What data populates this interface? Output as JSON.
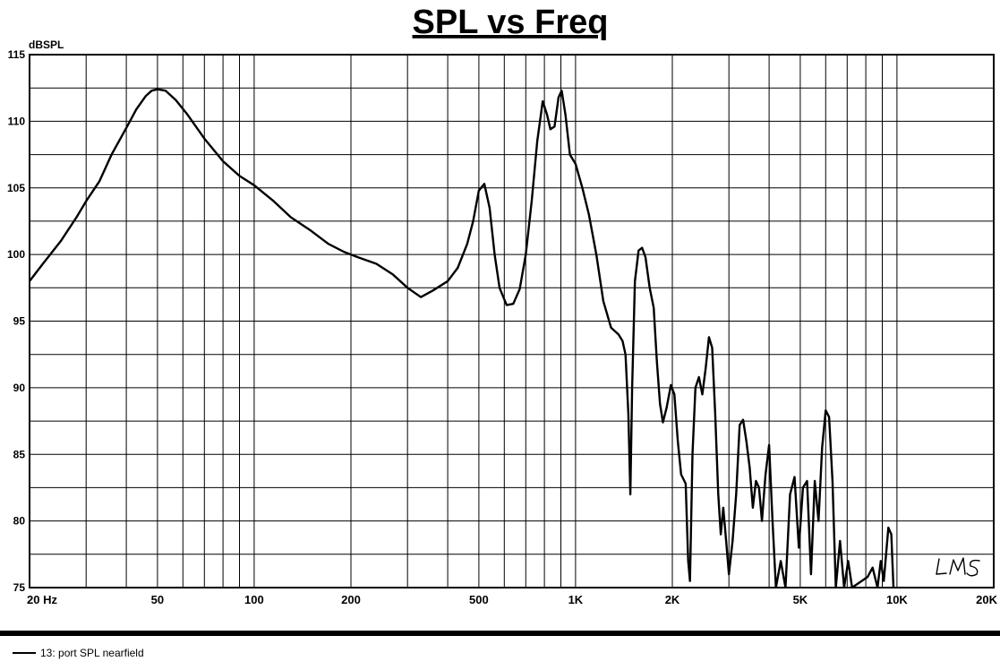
{
  "chart_data": {
    "type": "line",
    "title": "SPL vs Freq",
    "ylabel": "dBSPL",
    "xlabel": "",
    "x_scale": "log",
    "xlim": [
      20,
      20000
    ],
    "ylim": [
      75,
      115
    ],
    "grid": true,
    "y_ticks": [
      "115",
      "110",
      "105",
      "100",
      "95",
      "90",
      "85",
      "80",
      "75"
    ],
    "x_tick_labels": [
      {
        "x": 20,
        "label": "20  Hz"
      },
      {
        "x": 50,
        "label": "50"
      },
      {
        "x": 100,
        "label": "100"
      },
      {
        "x": 200,
        "label": "200"
      },
      {
        "x": 500,
        "label": "500"
      },
      {
        "x": 1000,
        "label": "1K"
      },
      {
        "x": 2000,
        "label": "2K"
      },
      {
        "x": 5000,
        "label": "5K"
      },
      {
        "x": 10000,
        "label": "10K"
      },
      {
        "x": 20000,
        "label": "20K"
      }
    ],
    "series": [
      {
        "name": "13: port SPL nearfield",
        "color": "#000000",
        "points": [
          [
            20,
            98.0
          ],
          [
            22,
            99.3
          ],
          [
            25,
            101.0
          ],
          [
            28,
            102.8
          ],
          [
            30,
            104.0
          ],
          [
            33,
            105.5
          ],
          [
            36,
            107.5
          ],
          [
            40,
            109.5
          ],
          [
            43,
            110.9
          ],
          [
            46,
            111.9
          ],
          [
            48,
            112.3
          ],
          [
            50,
            112.4
          ],
          [
            53,
            112.3
          ],
          [
            57,
            111.6
          ],
          [
            62,
            110.5
          ],
          [
            70,
            108.7
          ],
          [
            80,
            107.0
          ],
          [
            90,
            105.9
          ],
          [
            100,
            105.2
          ],
          [
            115,
            104.0
          ],
          [
            130,
            102.8
          ],
          [
            150,
            101.8
          ],
          [
            170,
            100.8
          ],
          [
            190,
            100.2
          ],
          [
            210,
            99.8
          ],
          [
            240,
            99.3
          ],
          [
            270,
            98.5
          ],
          [
            300,
            97.5
          ],
          [
            330,
            96.8
          ],
          [
            360,
            97.3
          ],
          [
            400,
            98.0
          ],
          [
            430,
            99.0
          ],
          [
            460,
            100.8
          ],
          [
            480,
            102.5
          ],
          [
            500,
            104.8
          ],
          [
            520,
            105.3
          ],
          [
            540,
            103.5
          ],
          [
            560,
            100.0
          ],
          [
            580,
            97.5
          ],
          [
            610,
            96.2
          ],
          [
            640,
            96.3
          ],
          [
            670,
            97.4
          ],
          [
            700,
            100.0
          ],
          [
            730,
            104.0
          ],
          [
            760,
            108.5
          ],
          [
            790,
            111.5
          ],
          [
            815,
            110.5
          ],
          [
            835,
            109.4
          ],
          [
            860,
            109.6
          ],
          [
            885,
            111.8
          ],
          [
            905,
            112.3
          ],
          [
            930,
            110.5
          ],
          [
            960,
            107.5
          ],
          [
            1000,
            106.8
          ],
          [
            1050,
            105.0
          ],
          [
            1100,
            103.0
          ],
          [
            1160,
            100.0
          ],
          [
            1220,
            96.5
          ],
          [
            1290,
            94.5
          ],
          [
            1360,
            94.0
          ],
          [
            1400,
            93.5
          ],
          [
            1430,
            92.5
          ],
          [
            1460,
            88.0
          ],
          [
            1480,
            82.0
          ],
          [
            1500,
            90.0
          ],
          [
            1530,
            98.0
          ],
          [
            1570,
            100.3
          ],
          [
            1610,
            100.5
          ],
          [
            1650,
            99.8
          ],
          [
            1700,
            97.5
          ],
          [
            1750,
            96.0
          ],
          [
            1790,
            92.0
          ],
          [
            1830,
            88.8
          ],
          [
            1870,
            87.4
          ],
          [
            1920,
            88.5
          ],
          [
            1980,
            90.2
          ],
          [
            2030,
            89.5
          ],
          [
            2080,
            86.0
          ],
          [
            2130,
            83.5
          ],
          [
            2200,
            82.8
          ],
          [
            2240,
            77.0
          ],
          [
            2270,
            75.5
          ],
          [
            2310,
            85.0
          ],
          [
            2360,
            90.0
          ],
          [
            2420,
            90.8
          ],
          [
            2480,
            89.5
          ],
          [
            2540,
            91.5
          ],
          [
            2600,
            93.8
          ],
          [
            2660,
            93.0
          ],
          [
            2720,
            88.0
          ],
          [
            2780,
            82.0
          ],
          [
            2830,
            79.0
          ],
          [
            2880,
            81.0
          ],
          [
            2940,
            78.5
          ],
          [
            3000,
            76.0
          ],
          [
            3080,
            78.5
          ],
          [
            3160,
            82.0
          ],
          [
            3240,
            87.2
          ],
          [
            3320,
            87.6
          ],
          [
            3400,
            86.0
          ],
          [
            3480,
            84.0
          ],
          [
            3560,
            81.0
          ],
          [
            3640,
            83.0
          ],
          [
            3720,
            82.5
          ],
          [
            3800,
            80.0
          ],
          [
            3900,
            83.5
          ],
          [
            4000,
            85.7
          ],
          [
            4100,
            80.0
          ],
          [
            4200,
            75.0
          ],
          [
            4350,
            77.0
          ],
          [
            4500,
            75.0
          ],
          [
            4650,
            82.0
          ],
          [
            4800,
            83.3
          ],
          [
            4950,
            78.0
          ],
          [
            5100,
            82.5
          ],
          [
            5250,
            83.0
          ],
          [
            5400,
            76.0
          ],
          [
            5550,
            83.0
          ],
          [
            5700,
            80.0
          ],
          [
            5850,
            85.5
          ],
          [
            6000,
            88.3
          ],
          [
            6150,
            87.8
          ],
          [
            6300,
            83.0
          ],
          [
            6450,
            75.0
          ],
          [
            6650,
            78.5
          ],
          [
            6850,
            75.0
          ],
          [
            7050,
            77.0
          ],
          [
            7250,
            75.0
          ],
          [
            8100,
            75.8
          ],
          [
            8400,
            76.5
          ],
          [
            8700,
            75.0
          ],
          [
            8900,
            77.0
          ],
          [
            9100,
            75.5
          ],
          [
            9400,
            79.5
          ],
          [
            9600,
            79.0
          ],
          [
            9750,
            75.0
          ]
        ]
      }
    ],
    "watermark": "LMS"
  },
  "legend": {
    "entry_label": "13: port SPL nearfield"
  }
}
